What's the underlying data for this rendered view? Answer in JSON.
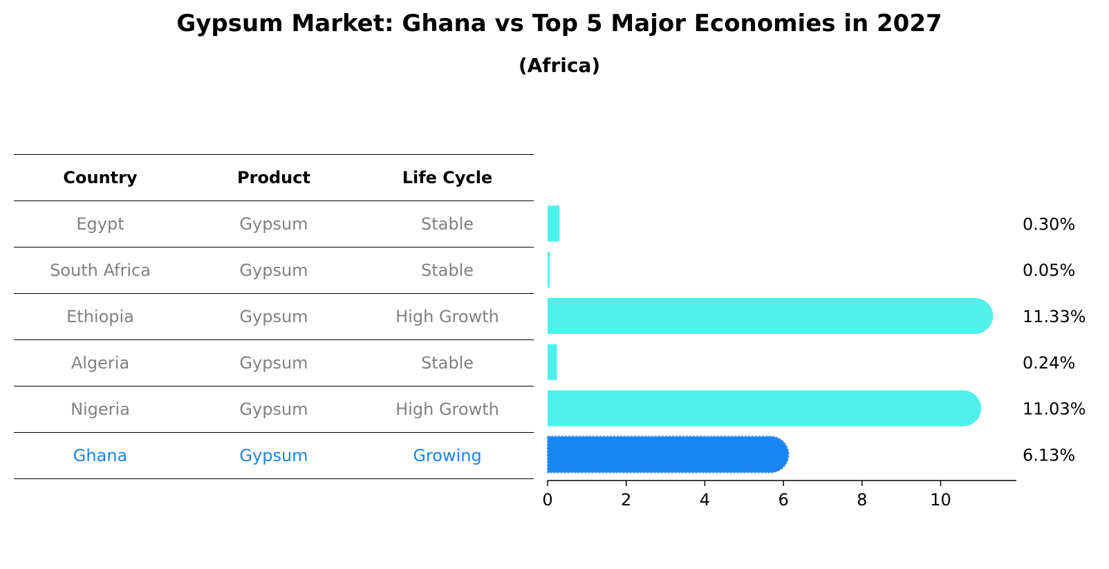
{
  "header": {
    "title": "Gypsum Market: Ghana vs Top 5 Major Economies in 2027",
    "subtitle": "(Africa)"
  },
  "table": {
    "columns": [
      "Country",
      "Product",
      "Life Cycle"
    ],
    "rows": [
      {
        "country": "Egypt",
        "product": "Gypsum",
        "life_cycle": "Stable"
      },
      {
        "country": "South Africa",
        "product": "Gypsum",
        "life_cycle": "Stable"
      },
      {
        "country": "Ethiopia",
        "product": "Gypsum",
        "life_cycle": "High Growth"
      },
      {
        "country": "Algeria",
        "product": "Gypsum",
        "life_cycle": "Stable"
      },
      {
        "country": "Nigeria",
        "product": "Gypsum",
        "life_cycle": "High Growth"
      },
      {
        "country": "Ghana",
        "product": "Gypsum",
        "life_cycle": "Growing"
      }
    ]
  },
  "chart_data": {
    "type": "bar",
    "orientation": "horizontal",
    "title": "Gypsum Market: Ghana vs Top 5 Major Economies in 2027",
    "subtitle": "(Africa)",
    "categories": [
      "Egypt",
      "South Africa",
      "Ethiopia",
      "Algeria",
      "Nigeria",
      "Ghana"
    ],
    "values": [
      0.3,
      0.05,
      11.33,
      0.24,
      11.03,
      6.13
    ],
    "value_labels": [
      "0.30%",
      "0.05%",
      "11.33%",
      "0.24%",
      "11.03%",
      "6.13%"
    ],
    "highlight": "Ghana",
    "xlim": [
      0,
      11.9
    ],
    "xticks": [
      0,
      2,
      4,
      6,
      8,
      10
    ],
    "xlabel": "",
    "ylabel": "",
    "grid": false,
    "colors": {
      "default": "#4ff0ec",
      "highlight": "#1a85f5"
    }
  }
}
